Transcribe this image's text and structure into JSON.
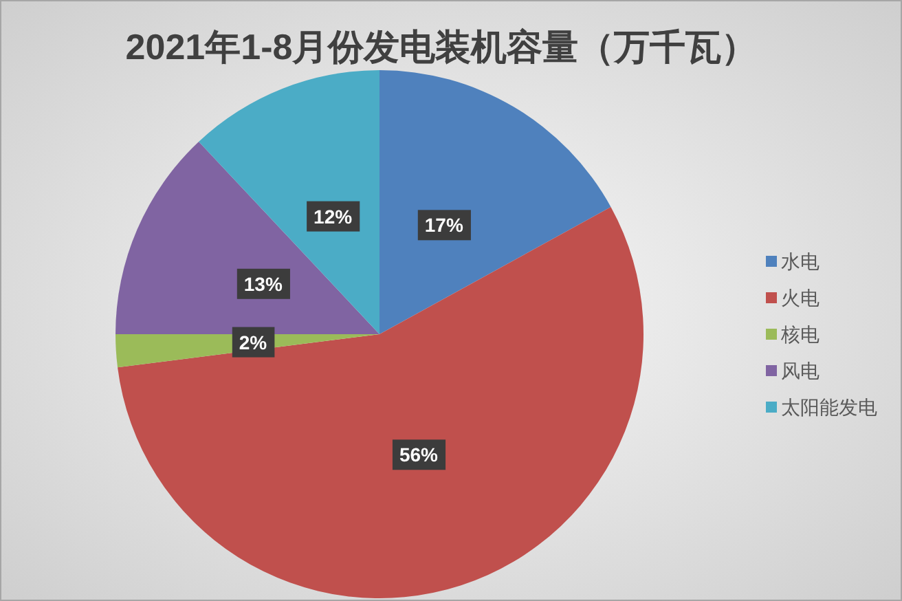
{
  "chart_data": {
    "type": "pie",
    "title": "2021年1-8月份发电装机容量（万千瓦）",
    "categories": [
      "水电",
      "火电",
      "核电",
      "风电",
      "太阳能发电"
    ],
    "values": [
      17,
      56,
      2,
      13,
      12
    ],
    "colors": [
      "#4f81bd",
      "#c0504d",
      "#9bbb59",
      "#8064a2",
      "#4bacc6"
    ],
    "value_labels": [
      "17%",
      "56%",
      "2%",
      "13%",
      "12%"
    ],
    "legend": "right"
  }
}
